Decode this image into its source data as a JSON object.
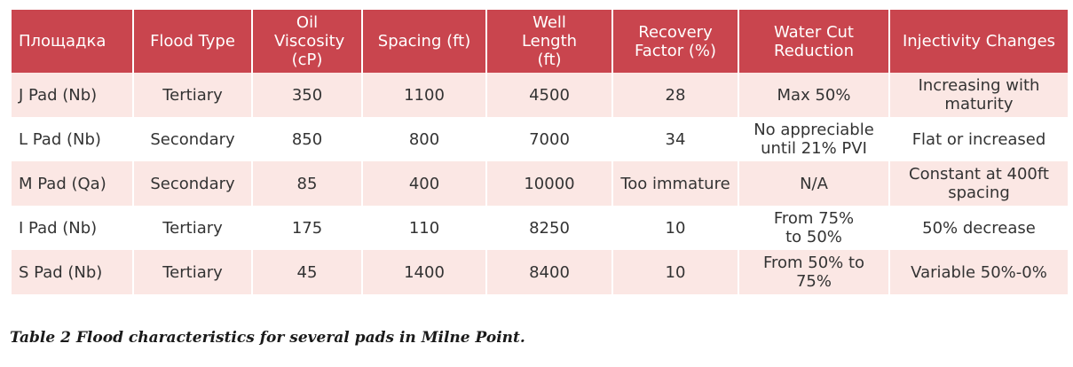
{
  "table": {
    "headers": [
      "Площадка",
      "Flood Type",
      "Oil Viscosity (cP)",
      "Spacing (ft)",
      "Well Length (ft)",
      "Recovery Factor (%)",
      "Water Cut Reduction",
      "Injectivity Changes"
    ],
    "rows": [
      [
        "J Pad (Nb)",
        "Tertiary",
        "350",
        "1100",
        "4500",
        "28",
        "Max 50%",
        "Increasing with maturity"
      ],
      [
        "L Pad (Nb)",
        "Secondary",
        "850",
        "800",
        "7000",
        "34",
        "No appreciable until 21% PVI",
        "Flat or increased"
      ],
      [
        "M Pad (Qa)",
        "Secondary",
        "85",
        "400",
        "10000",
        "Too immature",
        "N/A",
        "Constant at 400ft spacing"
      ],
      [
        "I Pad (Nb)",
        "Tertiary",
        "175",
        "110",
        "8250",
        "10",
        "From 75% to 50%",
        "50% decrease"
      ],
      [
        "S Pad (Nb)",
        "Tertiary",
        "45",
        "1400",
        "8400",
        "10",
        "From 50% to 75%",
        "Variable 50%-0%"
      ]
    ]
  },
  "caption": "Table 2 Flood characteristics for several pads in Milne Point.",
  "colors": {
    "header_bg": "#c9454e",
    "band_bg": "#fbe7e4"
  }
}
